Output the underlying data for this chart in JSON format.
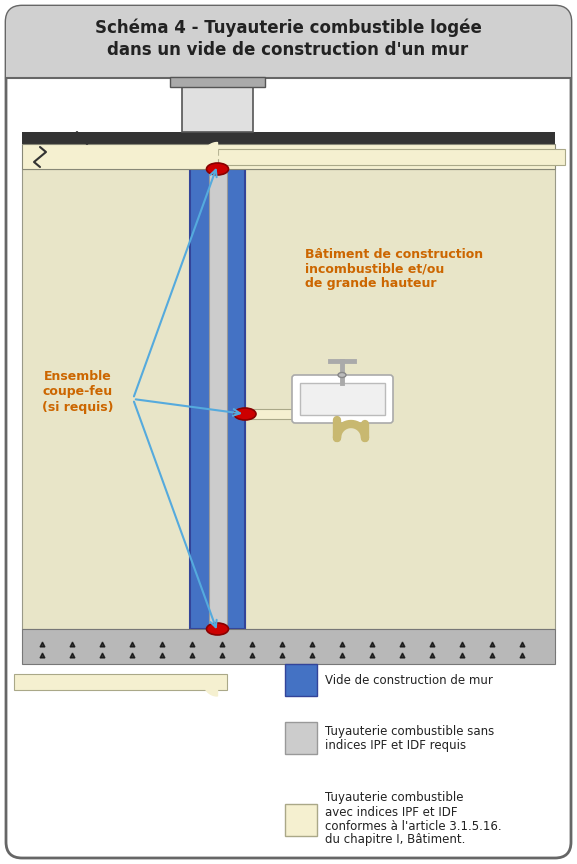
{
  "title_line1": "Schéma 4 - Tuyauterie combustible logée",
  "title_line2": "dans un vide de construction d'un mur",
  "bg_color": "#ffffff",
  "header_bg": "#d0d0d0",
  "border_color": "#666666",
  "blue_wall": "#4472c4",
  "pipe_gray": "#cccccc",
  "pipe_yellow": "#f5f0d0",
  "red_collar": "#cc0000",
  "orange_text": "#cc6600",
  "arrow_color": "#55aadd",
  "dark_color": "#222222",
  "wall_tan": "#e8e5c8",
  "concrete_color": "#b8b8b8",
  "slab_dark": "#333333",
  "label1": "Vide de construction de mur",
  "label2_line1": "Tuyauterie combustible sans",
  "label2_line2": "indices IPF et IDF requis",
  "label3_line1": "Tuyauterie combustible",
  "label3_line2": "avec indices IPF et IDF",
  "label3_line3": "conformes à l'article 3.1.5.16.",
  "label3_line4": "du chapitre I, Bâtiment.",
  "anno_bat_1": "Bâtiment de construction",
  "anno_bat_2": "incombustible et/ou",
  "anno_bat_3": "de grande hauteur",
  "anno_cf_1": "Ensemble",
  "anno_cf_2": "coupe-feu",
  "anno_cf_3": "(si requis)"
}
